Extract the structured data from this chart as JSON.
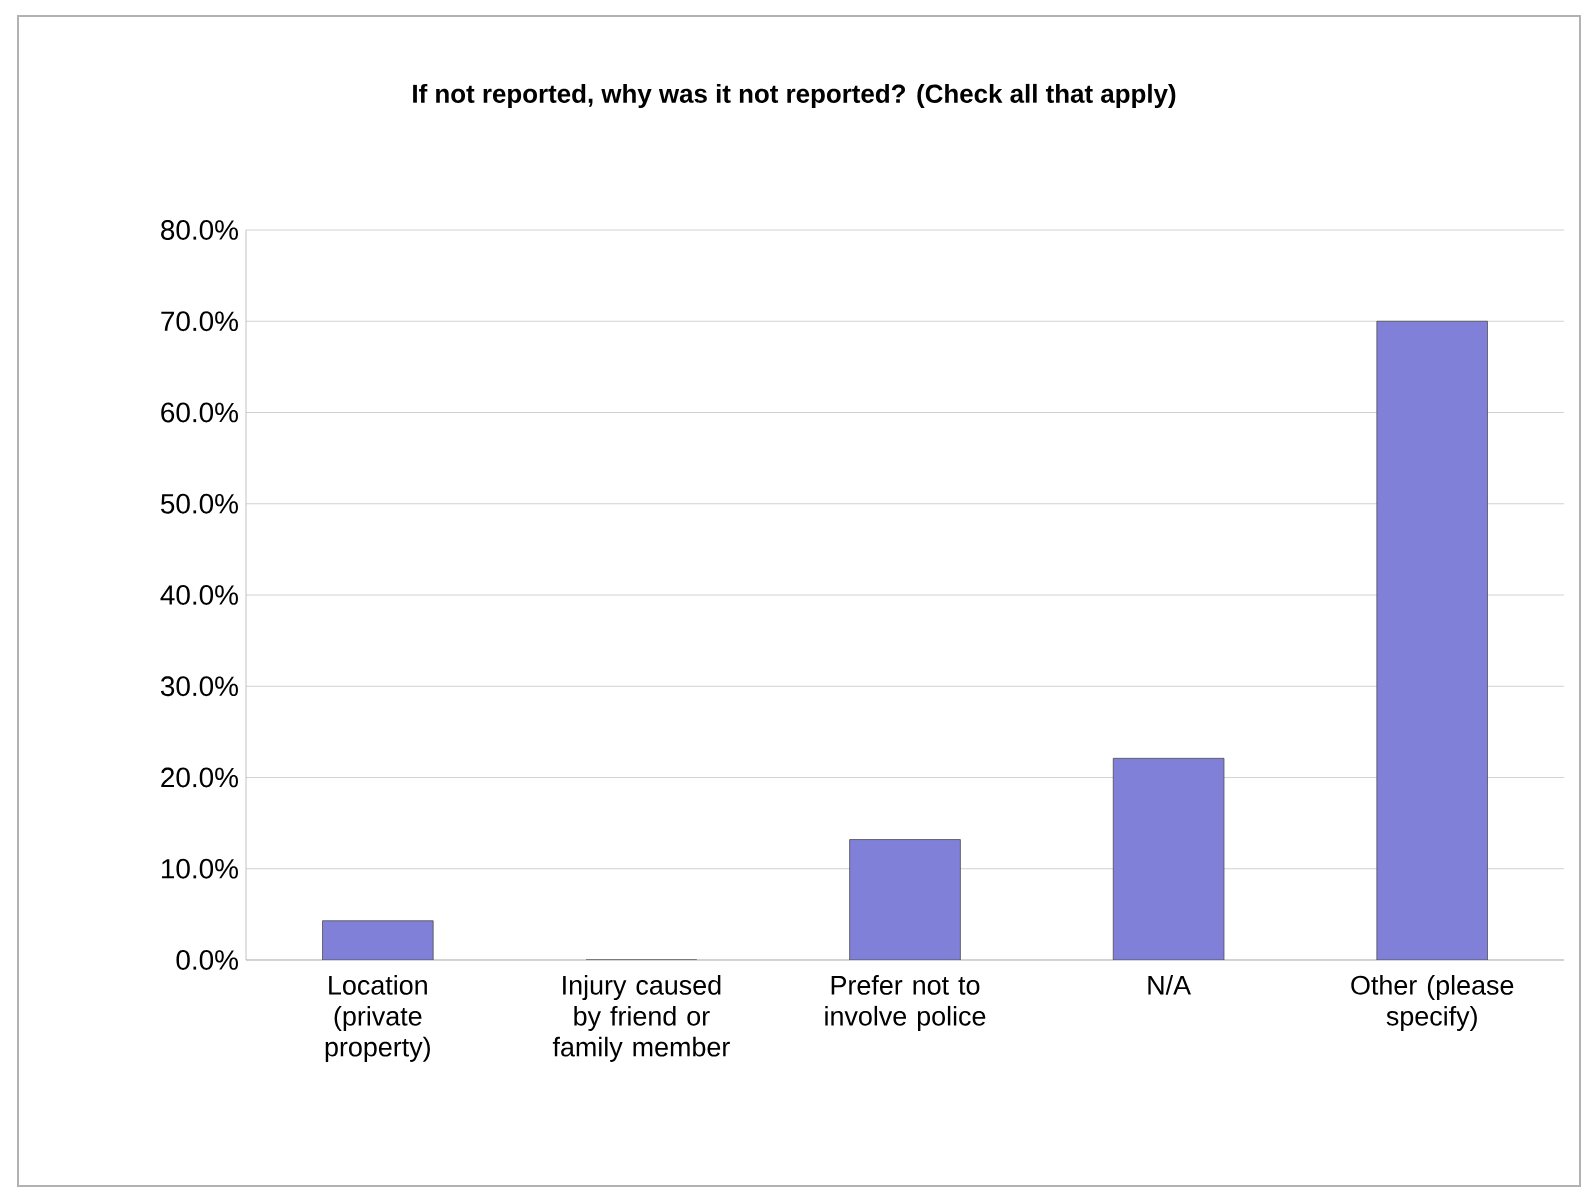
{
  "chart_data": {
    "type": "bar",
    "title": "If not reported, why was it not reported? (Check all that apply)",
    "categories": [
      "Location (private property)",
      "Injury caused by friend or family member",
      "Prefer not to involve police",
      "N/A",
      "Other (please specify)"
    ],
    "values": [
      4.3,
      0,
      13.2,
      22.1,
      70.0
    ],
    "color": "#8080d8",
    "ylim": [
      0,
      80
    ],
    "yticks": [
      {
        "value": 0,
        "label": "0.0%"
      },
      {
        "value": 10,
        "label": "10.0%"
      },
      {
        "value": 20,
        "label": "20.0%"
      },
      {
        "value": 30,
        "label": "30.0%"
      },
      {
        "value": 40,
        "label": "40.0%"
      },
      {
        "value": 50,
        "label": "50.0%"
      },
      {
        "value": 60,
        "label": "60.0%"
      },
      {
        "value": 70,
        "label": "70.0%"
      },
      {
        "value": 80,
        "label": "80.0%"
      }
    ],
    "grid": "y"
  }
}
